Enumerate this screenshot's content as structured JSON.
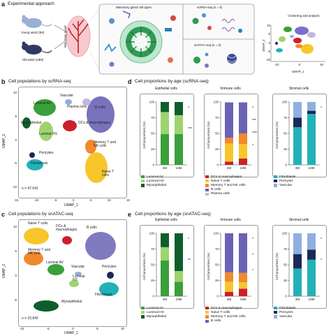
{
  "panel_a": {
    "label": "a",
    "title": "Experimental approach",
    "young": "Young adult (3M)",
    "old": "Old adult (18M)",
    "gland": "Mammary gland",
    "cell_types": "Mammary gland cell types",
    "scrna": "scRNA-seq (n = 6)",
    "snatac": "snATAC-seq (n = 3)",
    "clustering": "Clustering and analysis",
    "umap_x": "UMAP_1",
    "umap_y": "UMAP_2",
    "x_ticks": [
      "-10",
      "0",
      "10"
    ],
    "y_ticks": [
      "10",
      "5",
      "0",
      "-5",
      "-10"
    ]
  },
  "panel_b": {
    "label": "b",
    "title": "Cell populations by scRNA-seq",
    "n": "n = 47,641",
    "x_label": "UMAP_1",
    "y_label": "UMAP_2",
    "x_ticks": [
      "-15",
      "-10",
      "-5",
      "0",
      "5",
      "10",
      "15"
    ],
    "y_ticks": [
      "10",
      "5",
      "0",
      "-5",
      "-10"
    ],
    "clusters": {
      "vascular": "Vascular",
      "plasma": "Plasma cells",
      "bcells": "B cells",
      "luminal_av": "Luminal AV",
      "myoepithelial": "Myoepithelial",
      "dcs": "DCs & macrophages",
      "luminal_hs": "Luminal HS",
      "memory": "Memory T and NK cells",
      "pericytes": "Pericytes",
      "fibroblasts": "Fibroblasts",
      "naive": "Naive T cells"
    }
  },
  "panel_c": {
    "label": "c",
    "title": "Cell populations by snATAC-seq",
    "n": "n = 22,842",
    "x_label": "UMAP_1",
    "y_label": "UMAP_2",
    "x_ticks": [
      "-10",
      "-5",
      "0",
      "5",
      "10"
    ],
    "y_ticks": [
      "10",
      "5",
      "0",
      "-5"
    ],
    "clusters": {
      "naive": "Naive T cells",
      "dcs": "DCs & macrophages",
      "bcells": "B cells",
      "memory": "Memory T and NK cells",
      "luminal_av": "Luminal AV",
      "vascular": "Vascular",
      "luminal_hs": "Luminal HS",
      "pericytes": "Pericytes",
      "fibroblasts": "Fibroblasts",
      "myoepithelial": "Myoepithelial"
    }
  },
  "panel_d": {
    "label": "d",
    "title": "Cell proportions by age (scRNA-seq)"
  },
  "panel_e": {
    "label": "e",
    "title": "Cell proportions by age (snATAC-seq)"
  },
  "colors": {
    "luminal_av": "#3aa03a",
    "luminal_hs": "#9ed36f",
    "myoepithelial": "#0e5e2c",
    "dcs": "#cc1f2c",
    "naive": "#f7c62b",
    "memory": "#f08a2c",
    "bcells": "#6a63b5",
    "plasma": "#c4b5e0",
    "fibroblasts": "#21b2b7",
    "pericytes": "#1b2a55",
    "vascular": "#8fb0de"
  },
  "chart_data": [
    {
      "type": "bar",
      "stacked": true,
      "panel": "d",
      "title": "Epithelial cells",
      "ylabel": "Cell proportions (%)",
      "ylim": [
        0,
        100
      ],
      "y_ticks": [
        "0",
        "25",
        "50",
        "75",
        "100"
      ],
      "categories": [
        "3M",
        "18M"
      ],
      "series": [
        {
          "name": "Luminal AV",
          "color": "#3aa03a",
          "values": [
            49,
            49
          ]
        },
        {
          "name": "Luminal HS",
          "color": "#9ed36f",
          "values": [
            35,
            30
          ]
        },
        {
          "name": "Myoepithelial",
          "color": "#0e5e2c",
          "values": [
            16,
            21
          ]
        }
      ],
      "significance": [
        "*",
        "***"
      ],
      "legend_position": "below"
    },
    {
      "type": "bar",
      "stacked": true,
      "panel": "d",
      "title": "Immune cells",
      "ylabel": "Cell proportions (%)",
      "ylim": [
        0,
        100
      ],
      "y_ticks": [
        "0",
        "25",
        "50",
        "75",
        "100"
      ],
      "categories": [
        "3M",
        "18M"
      ],
      "series": [
        {
          "name": "DCs & macrophages",
          "color": "#cc1f2c",
          "values": [
            5,
            10
          ]
        },
        {
          "name": "Naive T cells",
          "color": "#f7c62b",
          "values": [
            29,
            23
          ]
        },
        {
          "name": "Memory T and NK cells",
          "color": "#f08a2c",
          "values": [
            9,
            17
          ]
        },
        {
          "name": "B cells",
          "color": "#6a63b5",
          "values": [
            56,
            49
          ]
        },
        {
          "name": "Plasma cells",
          "color": "#c4b5e0",
          "values": [
            1,
            1
          ]
        }
      ],
      "significance": [
        "*",
        "***",
        "****",
        "*"
      ],
      "legend_position": "below"
    },
    {
      "type": "bar",
      "stacked": true,
      "panel": "d",
      "title": "Stromal cells",
      "ylabel": "Cell proportions (%)",
      "ylim": [
        0,
        100
      ],
      "y_ticks": [
        "0",
        "25",
        "50",
        "75",
        "100"
      ],
      "categories": [
        "3M",
        "18M"
      ],
      "series": [
        {
          "name": "Fibroblasts",
          "color": "#21b2b7",
          "values": [
            60,
            81
          ]
        },
        {
          "name": "Pericytes",
          "color": "#1b2a55",
          "values": [
            15,
            5
          ]
        },
        {
          "name": "Vascular",
          "color": "#8fb0de",
          "values": [
            25,
            14
          ]
        }
      ],
      "significance": [
        "*"
      ],
      "legend_position": "below"
    },
    {
      "type": "bar",
      "stacked": true,
      "panel": "e",
      "title": "Epithelial cells",
      "ylabel": "Cell proportions (%)",
      "ylim": [
        0,
        100
      ],
      "y_ticks": [
        "0",
        "25",
        "50",
        "75",
        "100"
      ],
      "categories": [
        "3M",
        "18M"
      ],
      "series": [
        {
          "name": "Luminal AV",
          "color": "#3aa03a",
          "values": [
            57,
            23
          ]
        },
        {
          "name": "Luminal HS",
          "color": "#9ed36f",
          "values": [
            21,
            17
          ]
        },
        {
          "name": "Myoepithelial",
          "color": "#0e5e2c",
          "values": [
            22,
            60
          ]
        }
      ],
      "significance": [
        "*",
        "**"
      ],
      "legend_position": "below"
    },
    {
      "type": "bar",
      "stacked": true,
      "panel": "e",
      "title": "Immune cells",
      "ylabel": "Cell proportions (%)",
      "ylim": [
        0,
        100
      ],
      "y_ticks": [
        "0",
        "25",
        "50",
        "75",
        "100"
      ],
      "categories": [
        "3M",
        "18M"
      ],
      "series": [
        {
          "name": "DCs & macrophages",
          "color": "#cc1f2c",
          "values": [
            7,
            12
          ]
        },
        {
          "name": "Naive T cells",
          "color": "#f7c62b",
          "values": [
            16,
            10
          ]
        },
        {
          "name": "Memory T and NK cells",
          "color": "#f08a2c",
          "values": [
            15,
            15
          ]
        },
        {
          "name": "B cells",
          "color": "#6a63b5",
          "values": [
            62,
            63
          ]
        }
      ],
      "significance": [
        "*",
        "*",
        "*"
      ],
      "legend_position": "below"
    },
    {
      "type": "bar",
      "stacked": true,
      "panel": "e",
      "title": "Stromal cells",
      "ylabel": "Cell proportions (%)",
      "ylim": [
        0,
        100
      ],
      "y_ticks": [
        "0",
        "25",
        "50",
        "75",
        "100"
      ],
      "categories": [
        "3M",
        "18M"
      ],
      "series": [
        {
          "name": "Fibroblasts",
          "color": "#21b2b7",
          "values": [
            44,
            58
          ]
        },
        {
          "name": "Pericytes",
          "color": "#1b2a55",
          "values": [
            23,
            16
          ]
        },
        {
          "name": "Vascular",
          "color": "#8fb0de",
          "values": [
            33,
            26
          ]
        }
      ],
      "significance": [
        "*",
        "*"
      ],
      "legend_position": "below"
    }
  ]
}
